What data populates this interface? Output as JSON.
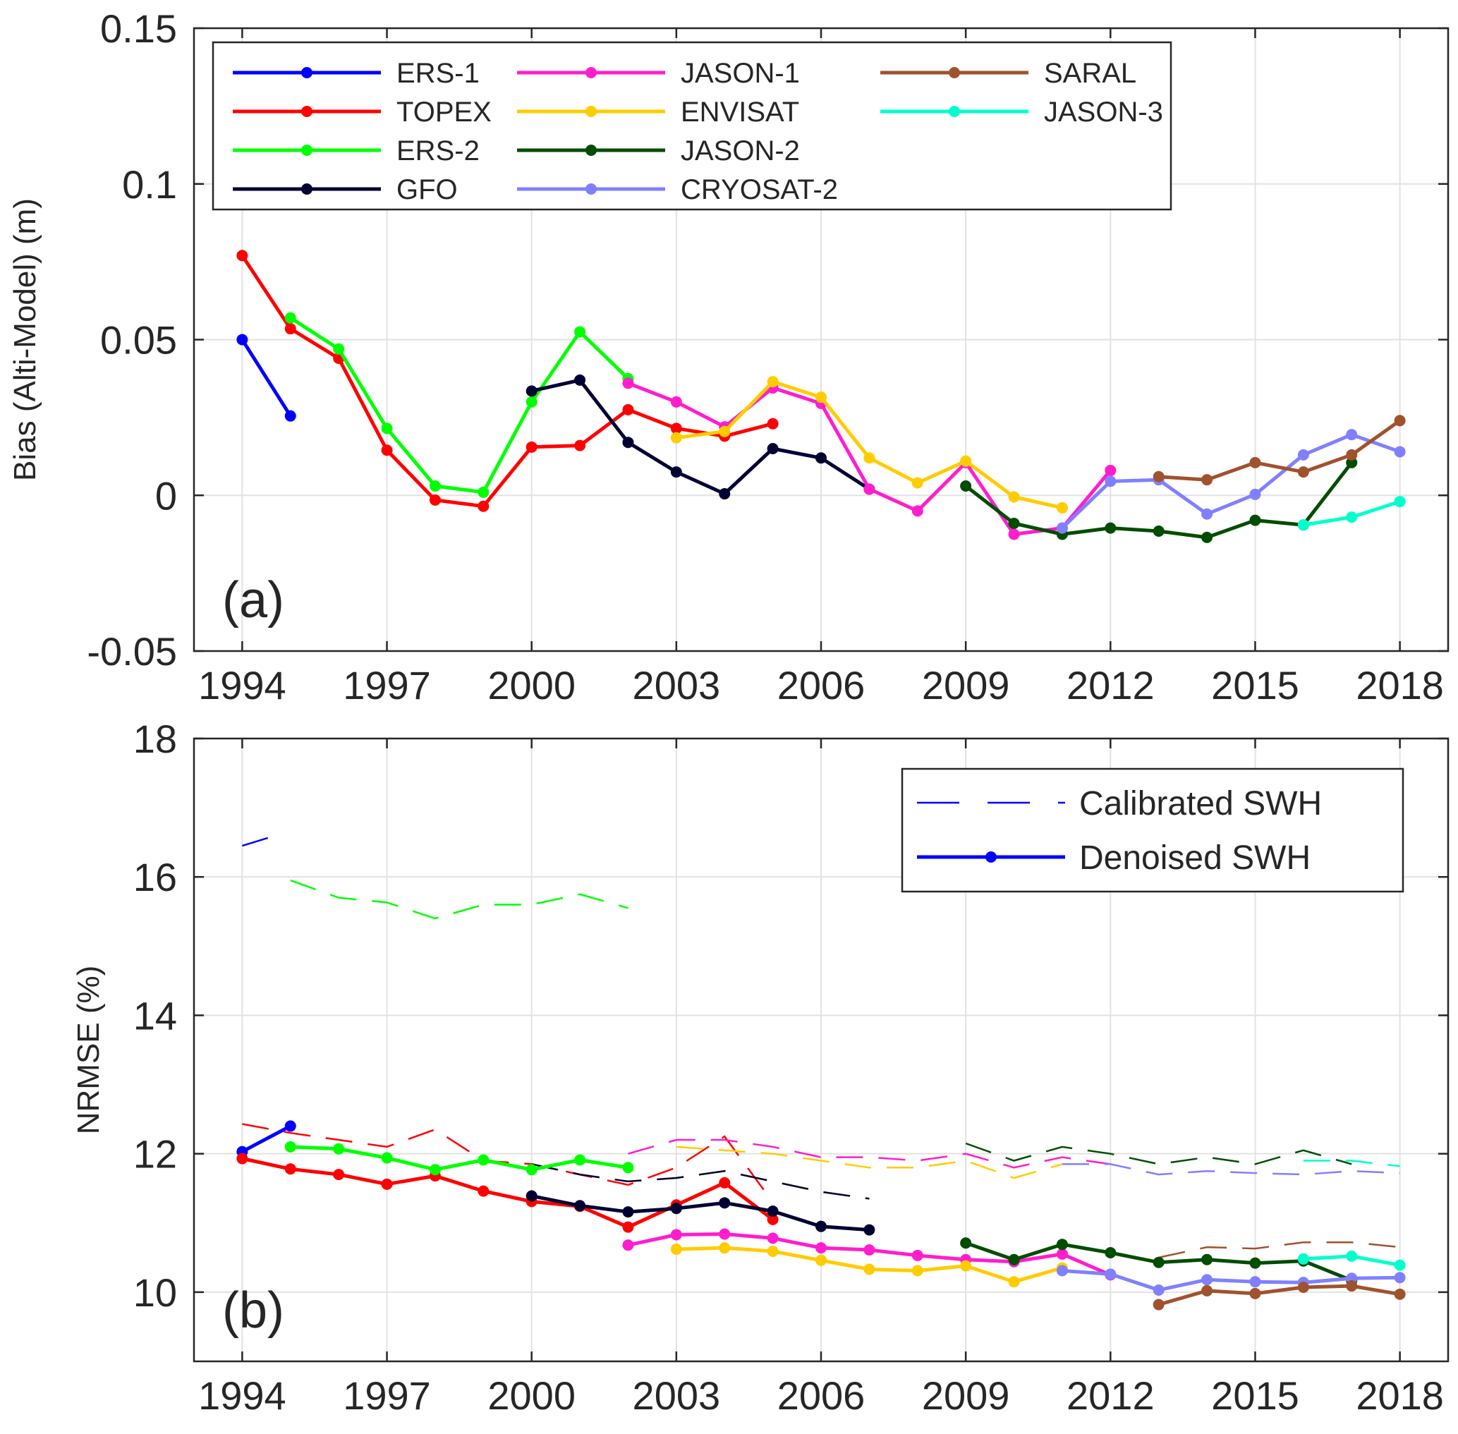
{
  "chart_data": [
    {
      "type": "line",
      "panel_label": "(a)",
      "ylabel": "Bias (Alti-Model) (m)",
      "xlabel": "",
      "xlim": [
        1993,
        2019
      ],
      "ylim": [
        -0.05,
        0.15
      ],
      "xticks": [
        1994,
        1997,
        2000,
        2003,
        2006,
        2009,
        2012,
        2015,
        2018
      ],
      "yticks": [
        -0.05,
        0,
        0.05,
        0.1,
        0.15
      ],
      "ytick_labels": [
        "-0.05",
        "0",
        "0.05",
        "0.1",
        "0.15"
      ],
      "grid": true,
      "legend_position": "top",
      "series": [
        {
          "name": "ERS-1",
          "color": "#0000ff",
          "x": [
            1994,
            1995
          ],
          "y": [
            0.05,
            0.0255
          ]
        },
        {
          "name": "TOPEX",
          "color": "#ff0000",
          "x": [
            1994,
            1995,
            1996,
            1997,
            1998,
            1999,
            2000,
            2001,
            2002,
            2003,
            2004,
            2005
          ],
          "y": [
            0.077,
            0.0535,
            0.044,
            0.0145,
            -0.0015,
            -0.0035,
            0.0155,
            0.016,
            0.0275,
            0.0215,
            0.019,
            0.023
          ]
        },
        {
          "name": "ERS-2",
          "color": "#00ff00",
          "x": [
            1995,
            1996,
            1997,
            1998,
            1999,
            2000,
            2001,
            2002
          ],
          "y": [
            0.057,
            0.047,
            0.0215,
            0.003,
            0.001,
            0.03,
            0.0525,
            0.0375
          ]
        },
        {
          "name": "GFO",
          "color": "#000033",
          "x": [
            2000,
            2001,
            2002,
            2003,
            2004,
            2005,
            2006,
            2007
          ],
          "y": [
            0.0335,
            0.037,
            0.017,
            0.0075,
            0.0005,
            0.015,
            0.012,
            0.002
          ]
        },
        {
          "name": "JASON-1",
          "color": "#ff1dce",
          "x": [
            2002,
            2003,
            2004,
            2005,
            2006,
            2007,
            2008,
            2009,
            2010,
            2011,
            2012
          ],
          "y": [
            0.036,
            0.03,
            0.022,
            0.0345,
            0.0295,
            0.002,
            -0.005,
            0.0105,
            -0.0125,
            -0.0105,
            0.008
          ]
        },
        {
          "name": "ENVISAT",
          "color": "#ffcc00",
          "x": [
            2003,
            2004,
            2005,
            2006,
            2007,
            2008,
            2009,
            2010,
            2011
          ],
          "y": [
            0.0185,
            0.0205,
            0.0365,
            0.0315,
            0.012,
            0.004,
            0.011,
            -0.0005,
            -0.004
          ]
        },
        {
          "name": "JASON-2",
          "color": "#004d00",
          "x": [
            2009,
            2010,
            2011,
            2012,
            2013,
            2014,
            2015,
            2016,
            2017
          ],
          "y": [
            0.003,
            -0.009,
            -0.0125,
            -0.0105,
            -0.0115,
            -0.0135,
            -0.008,
            -0.0095,
            0.0105
          ]
        },
        {
          "name": "CRYOSAT-2",
          "color": "#8080ff",
          "x": [
            2011,
            2012,
            2013,
            2014,
            2015,
            2016,
            2017,
            2018
          ],
          "y": [
            -0.0105,
            0.0045,
            0.005,
            -0.006,
            0.0003,
            0.013,
            0.0195,
            0.014
          ]
        },
        {
          "name": "SARAL",
          "color": "#a0522d",
          "x": [
            2013,
            2014,
            2015,
            2016,
            2017,
            2018
          ],
          "y": [
            0.006,
            0.005,
            0.0105,
            0.0075,
            0.013,
            0.024
          ]
        },
        {
          "name": "JASON-3",
          "color": "#00ffcc",
          "x": [
            2016,
            2017,
            2018
          ],
          "y": [
            -0.0095,
            -0.007,
            -0.002
          ]
        }
      ]
    },
    {
      "type": "line",
      "panel_label": "(b)",
      "ylabel": "NRMSE (%)",
      "xlabel": "",
      "xlim": [
        1993,
        2019
      ],
      "ylim": [
        9,
        18
      ],
      "xticks": [
        1994,
        1997,
        2000,
        2003,
        2006,
        2009,
        2012,
        2015,
        2018
      ],
      "yticks": [
        10,
        12,
        14,
        16,
        18
      ],
      "ytick_labels": [
        "10",
        "12",
        "14",
        "16",
        "18"
      ],
      "grid": true,
      "legend_position": "top-right",
      "legend": [
        {
          "label": "Calibrated SWH",
          "style": "dashed"
        },
        {
          "label": "Denoised SWH",
          "style": "solid-marker"
        }
      ],
      "series": [
        {
          "name": "ERS-1",
          "color": "#0000ff",
          "calibrated": {
            "x": [
              1994,
              1994.7
            ],
            "y": [
              16.45,
              16.6
            ]
          },
          "denoised": {
            "x": [
              1994,
              1995
            ],
            "y": [
              12.03,
              12.4
            ]
          }
        },
        {
          "name": "TOPEX",
          "color": "#ff0000",
          "calibrated": {
            "x": [
              1994,
              1995,
              1996,
              1997,
              1998,
              1999,
              2000,
              2001,
              2002,
              2003,
              2004,
              2005
            ],
            "y": [
              12.43,
              12.3,
              12.2,
              12.1,
              12.35,
              11.9,
              11.85,
              11.7,
              11.55,
              11.8,
              12.25,
              11.3
            ]
          },
          "denoised": {
            "x": [
              1994,
              1995,
              1996,
              1997,
              1998,
              1999,
              2000,
              2001,
              2002,
              2003,
              2004,
              2005
            ],
            "y": [
              11.93,
              11.78,
              11.7,
              11.56,
              11.68,
              11.46,
              11.31,
              11.24,
              10.94,
              11.26,
              11.58,
              11.05
            ]
          }
        },
        {
          "name": "ERS-2",
          "color": "#00ff00",
          "calibrated": {
            "x": [
              1995,
              1996,
              1997,
              1998,
              1999,
              2000,
              2001,
              2002
            ],
            "y": [
              15.95,
              15.7,
              15.63,
              15.4,
              15.6,
              15.6,
              15.75,
              15.55
            ]
          },
          "denoised": {
            "x": [
              1995,
              1996,
              1997,
              1998,
              1999,
              2000,
              2001,
              2002
            ],
            "y": [
              12.1,
              12.07,
              11.94,
              11.77,
              11.91,
              11.77,
              11.91,
              11.8
            ]
          }
        },
        {
          "name": "GFO",
          "color": "#000033",
          "calibrated": {
            "x": [
              2000,
              2001,
              2002,
              2003,
              2004,
              2005,
              2006,
              2007
            ],
            "y": [
              11.85,
              11.7,
              11.6,
              11.65,
              11.75,
              11.6,
              11.45,
              11.35
            ]
          },
          "denoised": {
            "x": [
              2000,
              2001,
              2002,
              2003,
              2004,
              2005,
              2006,
              2007
            ],
            "y": [
              11.39,
              11.25,
              11.16,
              11.21,
              11.29,
              11.17,
              10.95,
              10.9
            ]
          }
        },
        {
          "name": "JASON-1",
          "color": "#ff1dce",
          "calibrated": {
            "x": [
              2002,
              2003,
              2004,
              2005,
              2006,
              2007,
              2008,
              2009,
              2010,
              2011,
              2012
            ],
            "y": [
              12.0,
              12.2,
              12.2,
              12.1,
              11.95,
              11.95,
              11.9,
              12.0,
              11.8,
              11.95,
              11.85
            ]
          },
          "denoised": {
            "x": [
              2002,
              2003,
              2004,
              2005,
              2006,
              2007,
              2008,
              2009,
              2010,
              2011,
              2012
            ],
            "y": [
              10.68,
              10.83,
              10.84,
              10.78,
              10.64,
              10.61,
              10.53,
              10.47,
              10.44,
              10.55,
              10.25
            ]
          }
        },
        {
          "name": "ENVISAT",
          "color": "#ffcc00",
          "calibrated": {
            "x": [
              2003,
              2004,
              2005,
              2006,
              2007,
              2008,
              2009,
              2010,
              2011
            ],
            "y": [
              12.1,
              12.05,
              12.0,
              11.9,
              11.8,
              11.8,
              11.9,
              11.65,
              11.85
            ]
          },
          "denoised": {
            "x": [
              2003,
              2004,
              2005,
              2006,
              2007,
              2008,
              2009,
              2010,
              2011
            ],
            "y": [
              10.62,
              10.64,
              10.59,
              10.46,
              10.33,
              10.31,
              10.38,
              10.15,
              10.35
            ]
          }
        },
        {
          "name": "JASON-2",
          "color": "#004d00",
          "calibrated": {
            "x": [
              2009,
              2010,
              2011,
              2012,
              2013,
              2014,
              2015,
              2016,
              2017
            ],
            "y": [
              12.15,
              11.9,
              12.1,
              12.0,
              11.85,
              11.95,
              11.85,
              12.05,
              11.85
            ]
          },
          "denoised": {
            "x": [
              2009,
              2010,
              2011,
              2012,
              2013,
              2014,
              2015,
              2016,
              2017
            ],
            "y": [
              10.71,
              10.47,
              10.69,
              10.57,
              10.43,
              10.47,
              10.42,
              10.45,
              10.17
            ]
          }
        },
        {
          "name": "CRYOSAT-2",
          "color": "#8080ff",
          "calibrated": {
            "x": [
              2011,
              2012,
              2013,
              2014,
              2015,
              2016,
              2017,
              2018
            ],
            "y": [
              11.85,
              11.85,
              11.7,
              11.75,
              11.72,
              11.7,
              11.75,
              11.72
            ]
          },
          "denoised": {
            "x": [
              2011,
              2012,
              2013,
              2014,
              2015,
              2016,
              2017,
              2018
            ],
            "y": [
              10.31,
              10.26,
              10.03,
              10.18,
              10.15,
              10.14,
              10.2,
              10.21
            ]
          }
        },
        {
          "name": "SARAL",
          "color": "#a0522d",
          "calibrated": {
            "x": [
              2013,
              2014,
              2015,
              2016,
              2017,
              2018
            ],
            "y": [
              10.5,
              10.65,
              10.63,
              10.72,
              10.72,
              10.65
            ]
          },
          "denoised": {
            "x": [
              2013,
              2014,
              2015,
              2016,
              2017,
              2018
            ],
            "y": [
              9.82,
              10.02,
              9.98,
              10.07,
              10.09,
              9.97
            ]
          }
        },
        {
          "name": "JASON-3",
          "color": "#00ffcc",
          "calibrated": {
            "x": [
              2016,
              2017,
              2018
            ],
            "y": [
              11.9,
              11.9,
              11.82
            ]
          },
          "denoised": {
            "x": [
              2016,
              2017,
              2018
            ],
            "y": [
              10.48,
              10.52,
              10.39
            ]
          }
        }
      ]
    }
  ]
}
